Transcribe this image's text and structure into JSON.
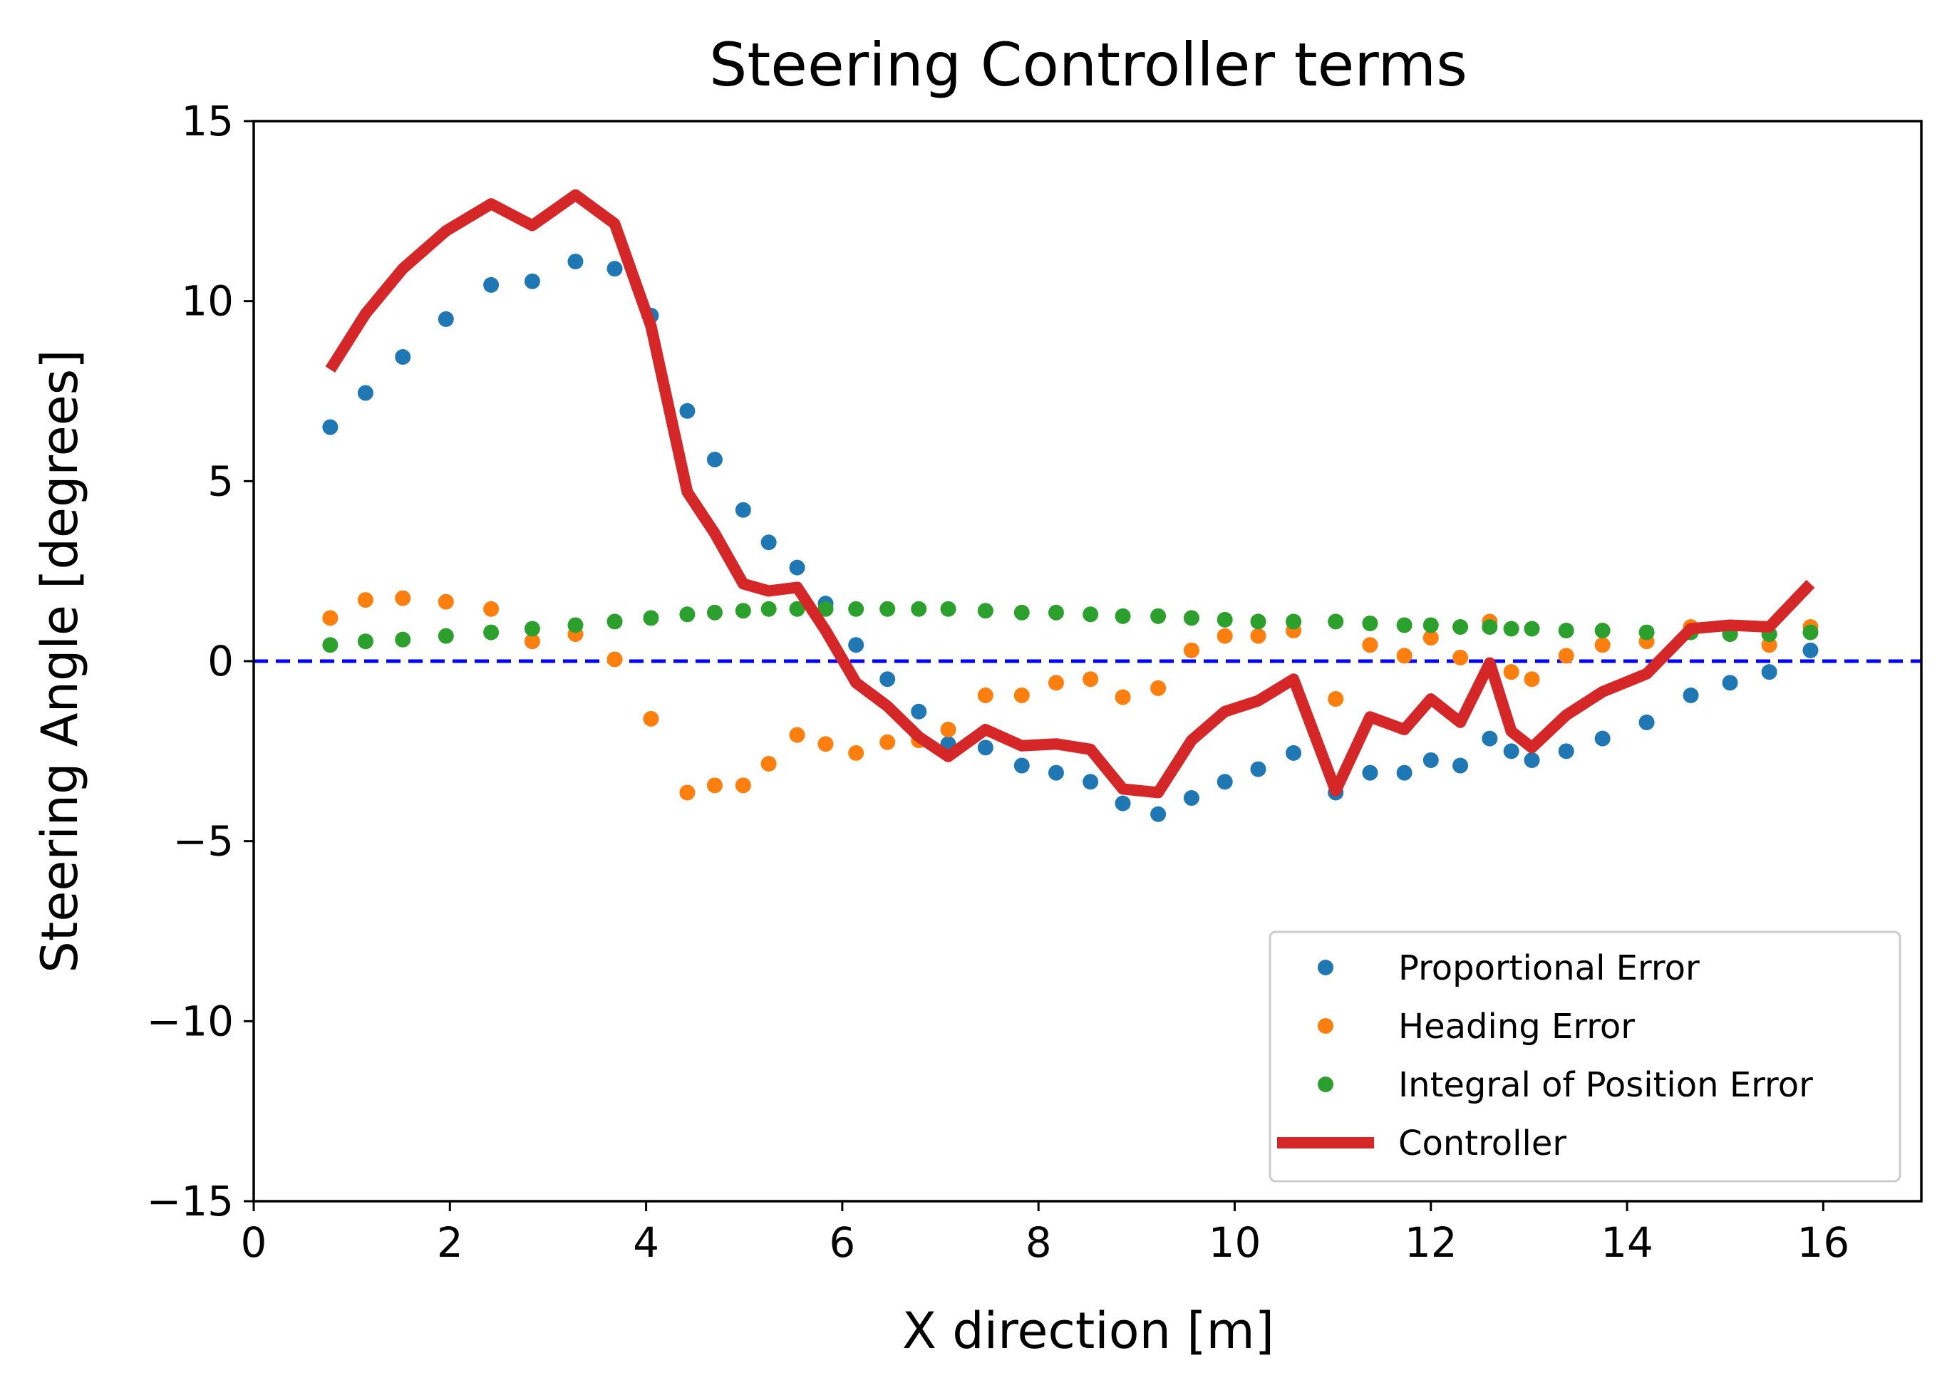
{
  "chart_data": {
    "type": "line",
    "title": "Steering Controller terms",
    "xlabel": "X direction [m]",
    "ylabel": "Steering Angle [degrees]",
    "xlim": [
      0,
      17
    ],
    "ylim": [
      -15,
      15
    ],
    "xticks": [
      0,
      2,
      4,
      6,
      8,
      10,
      12,
      14,
      16
    ],
    "yticks": [
      -15,
      -10,
      -5,
      0,
      5,
      10,
      15
    ],
    "xtick_labels": [
      "0",
      "2",
      "4",
      "6",
      "8",
      "10",
      "12",
      "14",
      "16"
    ],
    "ytick_labels": [
      "−15",
      "−10",
      "−5",
      "0",
      "5",
      "10",
      "15"
    ],
    "grid": false,
    "legend_position": "bottom-right",
    "reference_line": {
      "y": 0,
      "color": "#0000ff",
      "style": "dashed"
    },
    "series": [
      {
        "name": "Proportional Error",
        "style": "scatter",
        "color": "#1f77b4",
        "points": [
          [
            0.78,
            6.5
          ],
          [
            1.14,
            7.45
          ],
          [
            1.52,
            8.45
          ],
          [
            1.96,
            9.5
          ],
          [
            2.42,
            10.45
          ],
          [
            2.84,
            10.55
          ],
          [
            3.28,
            11.1
          ],
          [
            3.68,
            10.9
          ],
          [
            4.05,
            9.6
          ],
          [
            4.42,
            6.95
          ],
          [
            4.7,
            5.6
          ],
          [
            4.99,
            4.2
          ],
          [
            5.25,
            3.3
          ],
          [
            5.54,
            2.6
          ],
          [
            5.83,
            1.6
          ],
          [
            6.14,
            0.45
          ],
          [
            6.46,
            -0.5
          ],
          [
            6.78,
            -1.4
          ],
          [
            7.08,
            -2.3
          ],
          [
            7.46,
            -2.4
          ],
          [
            7.83,
            -2.9
          ],
          [
            8.18,
            -3.1
          ],
          [
            8.53,
            -3.35
          ],
          [
            8.86,
            -3.95
          ],
          [
            9.22,
            -4.25
          ],
          [
            9.56,
            -3.8
          ],
          [
            9.9,
            -3.35
          ],
          [
            10.24,
            -3.0
          ],
          [
            10.6,
            -2.55
          ],
          [
            11.03,
            -3.65
          ],
          [
            11.38,
            -3.1
          ],
          [
            11.73,
            -3.1
          ],
          [
            12.0,
            -2.75
          ],
          [
            12.3,
            -2.9
          ],
          [
            12.6,
            -2.15
          ],
          [
            12.82,
            -2.5
          ],
          [
            13.03,
            -2.75
          ],
          [
            13.38,
            -2.5
          ],
          [
            13.75,
            -2.15
          ],
          [
            14.2,
            -1.7
          ],
          [
            14.65,
            -0.95
          ],
          [
            15.05,
            -0.6
          ],
          [
            15.45,
            -0.3
          ],
          [
            15.87,
            0.3
          ]
        ]
      },
      {
        "name": "Heading Error",
        "style": "scatter",
        "color": "#ff7f0e",
        "points": [
          [
            0.78,
            1.2
          ],
          [
            1.14,
            1.7
          ],
          [
            1.52,
            1.75
          ],
          [
            1.96,
            1.65
          ],
          [
            2.42,
            1.45
          ],
          [
            2.84,
            0.55
          ],
          [
            3.28,
            0.75
          ],
          [
            3.68,
            0.05
          ],
          [
            4.05,
            -1.6
          ],
          [
            4.42,
            -3.65
          ],
          [
            4.7,
            -3.45
          ],
          [
            4.99,
            -3.45
          ],
          [
            5.25,
            -2.85
          ],
          [
            5.54,
            -2.05
          ],
          [
            5.83,
            -2.3
          ],
          [
            6.14,
            -2.55
          ],
          [
            6.46,
            -2.25
          ],
          [
            6.78,
            -2.2
          ],
          [
            7.08,
            -1.9
          ],
          [
            7.46,
            -0.95
          ],
          [
            7.83,
            -0.95
          ],
          [
            8.18,
            -0.6
          ],
          [
            8.53,
            -0.5
          ],
          [
            8.86,
            -1.0
          ],
          [
            9.22,
            -0.75
          ],
          [
            9.56,
            0.3
          ],
          [
            9.9,
            0.7
          ],
          [
            10.24,
            0.7
          ],
          [
            10.6,
            0.85
          ],
          [
            11.03,
            -1.05
          ],
          [
            11.38,
            0.45
          ],
          [
            11.73,
            0.15
          ],
          [
            12.0,
            0.65
          ],
          [
            12.3,
            0.1
          ],
          [
            12.6,
            1.1
          ],
          [
            12.82,
            -0.3
          ],
          [
            13.03,
            -0.5
          ],
          [
            13.38,
            0.15
          ],
          [
            13.75,
            0.45
          ],
          [
            14.2,
            0.55
          ],
          [
            14.65,
            0.95
          ],
          [
            15.05,
            0.8
          ],
          [
            15.45,
            0.45
          ],
          [
            15.87,
            0.95
          ]
        ]
      },
      {
        "name": "Integral of Position Error",
        "style": "scatter",
        "color": "#2ca02c",
        "points": [
          [
            0.78,
            0.45
          ],
          [
            1.14,
            0.55
          ],
          [
            1.52,
            0.6
          ],
          [
            1.96,
            0.7
          ],
          [
            2.42,
            0.8
          ],
          [
            2.84,
            0.9
          ],
          [
            3.28,
            1.0
          ],
          [
            3.68,
            1.1
          ],
          [
            4.05,
            1.2
          ],
          [
            4.42,
            1.3
          ],
          [
            4.7,
            1.35
          ],
          [
            4.99,
            1.4
          ],
          [
            5.25,
            1.45
          ],
          [
            5.54,
            1.45
          ],
          [
            5.83,
            1.45
          ],
          [
            6.14,
            1.45
          ],
          [
            6.46,
            1.45
          ],
          [
            6.78,
            1.45
          ],
          [
            7.08,
            1.45
          ],
          [
            7.46,
            1.4
          ],
          [
            7.83,
            1.35
          ],
          [
            8.18,
            1.35
          ],
          [
            8.53,
            1.3
          ],
          [
            8.86,
            1.25
          ],
          [
            9.22,
            1.25
          ],
          [
            9.56,
            1.2
          ],
          [
            9.9,
            1.15
          ],
          [
            10.24,
            1.1
          ],
          [
            10.6,
            1.1
          ],
          [
            11.03,
            1.1
          ],
          [
            11.38,
            1.05
          ],
          [
            11.73,
            1.0
          ],
          [
            12.0,
            1.0
          ],
          [
            12.3,
            0.95
          ],
          [
            12.6,
            0.95
          ],
          [
            12.82,
            0.9
          ],
          [
            13.03,
            0.9
          ],
          [
            13.38,
            0.85
          ],
          [
            13.75,
            0.85
          ],
          [
            14.2,
            0.8
          ],
          [
            14.65,
            0.8
          ],
          [
            15.05,
            0.75
          ],
          [
            15.45,
            0.75
          ],
          [
            15.87,
            0.8
          ]
        ]
      },
      {
        "name": "Controller",
        "style": "line",
        "color": "#d62728",
        "points": [
          [
            0.78,
            8.1
          ],
          [
            1.14,
            9.65
          ],
          [
            1.52,
            10.9
          ],
          [
            1.96,
            11.95
          ],
          [
            2.42,
            12.7
          ],
          [
            2.84,
            12.1
          ],
          [
            3.28,
            12.95
          ],
          [
            3.68,
            12.15
          ],
          [
            4.05,
            9.3
          ],
          [
            4.42,
            4.7
          ],
          [
            4.7,
            3.55
          ],
          [
            4.99,
            2.15
          ],
          [
            5.25,
            1.95
          ],
          [
            5.54,
            2.05
          ],
          [
            5.83,
            0.85
          ],
          [
            6.14,
            -0.6
          ],
          [
            6.46,
            -1.25
          ],
          [
            6.78,
            -2.1
          ],
          [
            7.08,
            -2.65
          ],
          [
            7.46,
            -1.9
          ],
          [
            7.83,
            -2.35
          ],
          [
            8.18,
            -2.3
          ],
          [
            8.53,
            -2.45
          ],
          [
            8.86,
            -3.55
          ],
          [
            9.22,
            -3.65
          ],
          [
            9.56,
            -2.2
          ],
          [
            9.9,
            -1.4
          ],
          [
            10.24,
            -1.1
          ],
          [
            10.6,
            -0.5
          ],
          [
            11.03,
            -3.6
          ],
          [
            11.38,
            -1.55
          ],
          [
            11.73,
            -1.9
          ],
          [
            12.0,
            -1.05
          ],
          [
            12.3,
            -1.7
          ],
          [
            12.6,
            -0.05
          ],
          [
            12.82,
            -1.95
          ],
          [
            13.03,
            -2.4
          ],
          [
            13.38,
            -1.5
          ],
          [
            13.75,
            -0.85
          ],
          [
            14.2,
            -0.35
          ],
          [
            14.65,
            0.9
          ],
          [
            15.05,
            1.0
          ],
          [
            15.45,
            0.95
          ],
          [
            15.87,
            2.15
          ]
        ]
      }
    ]
  }
}
